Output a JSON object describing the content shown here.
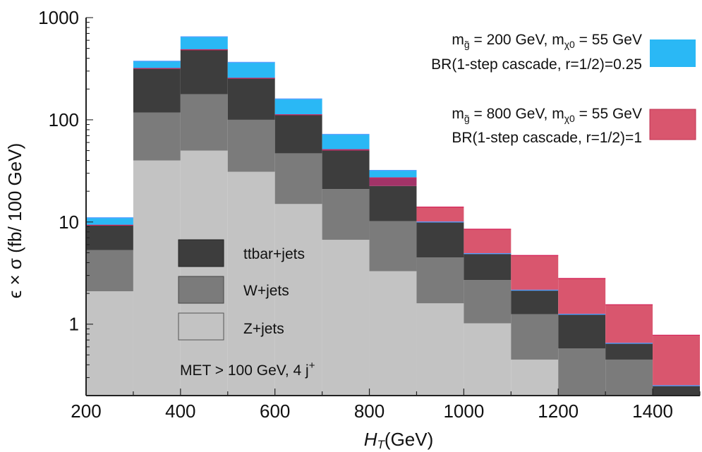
{
  "chart_data": {
    "type": "bar",
    "stacked": true,
    "xlabel_var": "H",
    "xlabel_sub": "T",
    "xlabel_unit": "(GeV)",
    "ylabel": "ϵ × σ (fb/ 100 GeV)",
    "xlim": [
      200,
      1500
    ],
    "ylim": [
      0.2,
      1000
    ],
    "y_scale": "log",
    "x_ticks": [
      200,
      400,
      600,
      800,
      1000,
      1200,
      1400
    ],
    "y_ticks": [
      1,
      10,
      100,
      1000
    ],
    "y_tick_labels": [
      "1",
      "10",
      "100",
      "1000"
    ],
    "bin_edges": [
      200,
      300,
      400,
      500,
      600,
      700,
      800,
      900,
      1000,
      1100,
      1200,
      1300,
      1400,
      1500
    ],
    "series": [
      {
        "name": "Z+jets",
        "color": "#c3c3c3",
        "cumulative": [
          2.1,
          40,
          50,
          31,
          15,
          6.7,
          3.3,
          1.6,
          1.02,
          0.45,
          0.2,
          0.2,
          0.2
        ]
      },
      {
        "name": "W+jets",
        "color": "#7b7b7b",
        "cumulative": [
          5.3,
          118,
          178,
          100,
          47,
          21,
          10.2,
          4.5,
          2.7,
          1.25,
          0.58,
          0.45,
          0.2
        ]
      },
      {
        "name": "ttbar+jets",
        "color": "#3d3d3d",
        "cumulative": [
          9.3,
          318,
          485,
          255,
          112,
          50,
          22.5,
          10,
          4.9,
          2.15,
          1.25,
          0.65,
          0.25
        ]
      }
    ],
    "signals": [
      {
        "label_line1": "m<sub>g̃</sub> = 200 GeV, m<sub>χ0</sub> = 55 GeV",
        "line1_parts": [
          "m",
          "g̃",
          " = 200 GeV, m",
          "χ0",
          " = 55 GeV"
        ],
        "label_line2": "BR(1-step cascade, r=1/2)=0.25",
        "color": "#2ab8f5",
        "totals": [
          11,
          375,
          650,
          365,
          160,
          72,
          32,
          10,
          4.9,
          2.15,
          1.25,
          0.65,
          0.25
        ]
      },
      {
        "line1_parts": [
          "m",
          "g̃",
          " = 800 GeV, m",
          "χ0",
          " = 55 GeV"
        ],
        "label_line2": "BR(1-step cascade, r=1/2)=1",
        "color": "#d9566e",
        "totals": [
          9.3,
          318,
          485,
          255,
          112,
          51,
          27,
          14,
          8.5,
          4.7,
          2.8,
          1.55,
          0.78
        ]
      }
    ],
    "overlap_color": "#a33368",
    "annotation": "MET > 100 GeV, 4 j",
    "annotation_sup": "+",
    "legend_position": "center-left (background), top-right (signals)"
  }
}
